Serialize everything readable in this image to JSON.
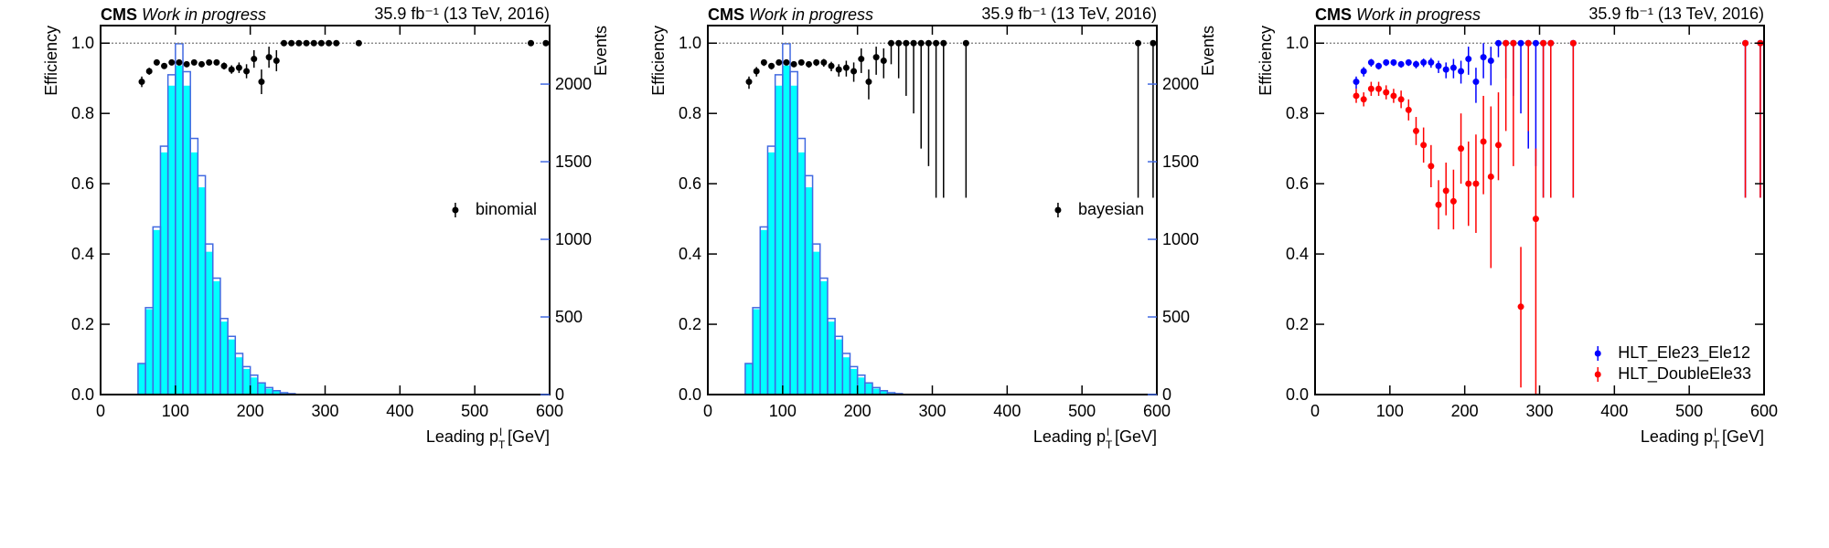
{
  "chart_data": [
    {
      "type": "errorbar",
      "experiment": "CMS",
      "status": "Work in progress",
      "lumi": "35.9 fb⁻¹ (13 TeV, 2016)",
      "xlabel": {
        "text": "Leading p",
        "sub": "T",
        "sup": "l",
        "unit": "[GeV]"
      },
      "ylabel": "Efficiency",
      "y2label": "Events",
      "y2color": "#4169e1",
      "xlim": [
        0,
        600
      ],
      "xticks": [
        0,
        100,
        200,
        300,
        400,
        500,
        600
      ],
      "ylim": [
        0,
        1.05
      ],
      "yticks": [
        {
          "value": 0,
          "label": "0.0"
        },
        0.2,
        0.4,
        0.6,
        0.8,
        {
          "value": 1,
          "label": "1.0"
        }
      ],
      "y2lim": [
        0,
        2377
      ],
      "y2ticks": [
        0,
        500,
        1000,
        1500,
        2000
      ],
      "hline": 1,
      "legend": "center right",
      "x": [
        55,
        65,
        75,
        85,
        95,
        105,
        115,
        125,
        135,
        145,
        155,
        165,
        175,
        185,
        195,
        205,
        215,
        225,
        235,
        245,
        255,
        265,
        275,
        285,
        295,
        305,
        315,
        345,
        575,
        595
      ],
      "series": [
        {
          "name": "binomial",
          "color": "#000000",
          "values": [
            0.89,
            0.92,
            0.945,
            0.935,
            0.945,
            0.945,
            0.94,
            0.945,
            0.94,
            0.945,
            0.945,
            0.935,
            0.925,
            0.93,
            0.92,
            0.955,
            0.89,
            0.96,
            0.95,
            1,
            1,
            1,
            1,
            1,
            1,
            1,
            1,
            1,
            1,
            1
          ],
          "err_low": [
            0.015,
            0.01,
            0.008,
            0.007,
            0.006,
            0.006,
            0.006,
            0.006,
            0.007,
            0.007,
            0.008,
            0.01,
            0.012,
            0.015,
            0.02,
            0.025,
            0.035,
            0.03,
            0.03,
            0,
            0,
            0,
            0,
            0,
            0,
            0,
            0,
            0,
            0,
            0
          ],
          "err_high": [
            0.015,
            0.01,
            0.008,
            0.007,
            0.006,
            0.006,
            0.006,
            0.006,
            0.007,
            0.007,
            0.008,
            0.01,
            0.012,
            0.015,
            0.02,
            0.025,
            0.035,
            0.03,
            0.03,
            0,
            0,
            0,
            0,
            0,
            0,
            0,
            0,
            0,
            0,
            0
          ]
        }
      ],
      "hist_bins": [
        50,
        60,
        70,
        80,
        90,
        100,
        110,
        120,
        130,
        140,
        150,
        160,
        170,
        180,
        190,
        200,
        210,
        220,
        230,
        240,
        250,
        260
      ],
      "hist_series": [
        {
          "color": "#00ffff",
          "fill": true,
          "values": [
            200,
            550,
            1060,
            1560,
            1990,
            2120,
            1990,
            1560,
            1335,
            920,
            730,
            470,
            355,
            240,
            165,
            110,
            70,
            38,
            22,
            8,
            4
          ]
        },
        {
          "color": "#4169e1",
          "fill": false,
          "values": [
            200,
            560,
            1080,
            1600,
            2060,
            2260,
            2080,
            1650,
            1410,
            970,
            750,
            490,
            375,
            265,
            180,
            125,
            75,
            45,
            25,
            12,
            6
          ]
        }
      ]
    },
    {
      "type": "errorbar",
      "experiment": "CMS",
      "status": "Work in progress",
      "lumi": "35.9 fb⁻¹ (13 TeV, 2016)",
      "xlabel": {
        "text": "Leading p",
        "sub": "T",
        "sup": "l",
        "unit": "[GeV]"
      },
      "ylabel": "Efficiency",
      "y2label": "Events",
      "y2color": "#4169e1",
      "xlim": [
        0,
        600
      ],
      "xticks": [
        0,
        100,
        200,
        300,
        400,
        500,
        600
      ],
      "ylim": [
        0,
        1.05
      ],
      "yticks": [
        {
          "value": 0,
          "label": "0.0"
        },
        0.2,
        0.4,
        0.6,
        0.8,
        {
          "value": 1,
          "label": "1.0"
        }
      ],
      "y2lim": [
        0,
        2377
      ],
      "y2ticks": [
        0,
        500,
        1000,
        1500,
        2000
      ],
      "hline": 1,
      "legend": "center right",
      "x": [
        55,
        65,
        75,
        85,
        95,
        105,
        115,
        125,
        135,
        145,
        155,
        165,
        175,
        185,
        195,
        205,
        215,
        225,
        235,
        245,
        255,
        265,
        275,
        285,
        295,
        305,
        315,
        345,
        575,
        595
      ],
      "series": [
        {
          "name": "bayesian",
          "color": "#000000",
          "values": [
            0.89,
            0.92,
            0.945,
            0.935,
            0.945,
            0.945,
            0.94,
            0.945,
            0.94,
            0.945,
            0.945,
            0.935,
            0.925,
            0.93,
            0.92,
            0.955,
            0.89,
            0.96,
            0.95,
            1,
            1,
            1,
            1,
            1,
            1,
            1,
            1,
            1,
            1,
            1
          ],
          "err_low": [
            0.02,
            0.015,
            0.01,
            0.01,
            0.008,
            0.008,
            0.008,
            0.008,
            0.01,
            0.01,
            0.012,
            0.015,
            0.02,
            0.025,
            0.03,
            0.04,
            0.05,
            0.05,
            0.05,
            0.06,
            0.1,
            0.15,
            0.2,
            0.3,
            0.35,
            0.44,
            0.44,
            0.44,
            0.44,
            0.44
          ],
          "err_high": [
            0.015,
            0.012,
            0.008,
            0.008,
            0.007,
            0.007,
            0.007,
            0.007,
            0.008,
            0.009,
            0.01,
            0.012,
            0.015,
            0.02,
            0.025,
            0.03,
            0.035,
            0.03,
            0.035,
            0,
            0,
            0,
            0,
            0,
            0,
            0,
            0,
            0,
            0,
            0
          ]
        }
      ],
      "hist_bins": [
        50,
        60,
        70,
        80,
        90,
        100,
        110,
        120,
        130,
        140,
        150,
        160,
        170,
        180,
        190,
        200,
        210,
        220,
        230,
        240,
        250,
        260
      ],
      "hist_series": [
        {
          "color": "#00ffff",
          "fill": true,
          "values": [
            200,
            550,
            1060,
            1560,
            1990,
            2120,
            1990,
            1560,
            1335,
            920,
            730,
            470,
            355,
            240,
            165,
            110,
            70,
            38,
            22,
            8,
            4
          ]
        },
        {
          "color": "#4169e1",
          "fill": false,
          "values": [
            200,
            560,
            1080,
            1600,
            2060,
            2260,
            2080,
            1650,
            1410,
            970,
            750,
            490,
            375,
            265,
            180,
            125,
            75,
            45,
            25,
            12,
            6
          ]
        }
      ]
    },
    {
      "type": "errorbar",
      "experiment": "CMS",
      "status": "Work in progress",
      "lumi": "35.9 fb⁻¹ (13 TeV, 2016)",
      "xlabel": {
        "text": "Leading p",
        "sub": "T",
        "sup": "l",
        "unit": "[GeV]"
      },
      "ylabel": "Efficiency",
      "xlim": [
        0,
        600
      ],
      "xticks": [
        0,
        100,
        200,
        300,
        400,
        500,
        600
      ],
      "ylim": [
        0,
        1.05
      ],
      "yticks": [
        {
          "value": 0,
          "label": "0.0"
        },
        0.2,
        0.4,
        0.6,
        0.8,
        {
          "value": 1,
          "label": "1.0"
        }
      ],
      "hline": 1,
      "legend": "lower right",
      "x": [
        55,
        65,
        75,
        85,
        95,
        105,
        115,
        125,
        135,
        145,
        155,
        165,
        175,
        185,
        195,
        205,
        215,
        225,
        235,
        245,
        255,
        265,
        275,
        285,
        295,
        305,
        315,
        345,
        575,
        595
      ],
      "series": [
        {
          "name": "HLT_Ele23_Ele12",
          "color": "#0000ff",
          "values": [
            0.89,
            0.92,
            0.945,
            0.935,
            0.945,
            0.945,
            0.94,
            0.945,
            0.94,
            0.945,
            0.945,
            0.935,
            0.925,
            0.93,
            0.92,
            0.955,
            0.89,
            0.96,
            0.95,
            1,
            1,
            1,
            1,
            1,
            1,
            1,
            1,
            1,
            1,
            1
          ],
          "err_low": [
            0.02,
            0.015,
            0.012,
            0.01,
            0.01,
            0.01,
            0.01,
            0.01,
            0.012,
            0.013,
            0.015,
            0.02,
            0.025,
            0.03,
            0.035,
            0.045,
            0.06,
            0.06,
            0.07,
            0.04,
            0.1,
            0.15,
            0.2,
            0.3,
            0.35,
            0.44,
            0.44,
            0.44,
            0.44,
            0.44
          ],
          "err_high": [
            0.015,
            0.012,
            0.01,
            0.009,
            0.009,
            0.009,
            0.009,
            0.009,
            0.01,
            0.011,
            0.013,
            0.015,
            0.02,
            0.025,
            0.03,
            0.035,
            0.04,
            0.04,
            0.04,
            0,
            0,
            0,
            0,
            0,
            0,
            0,
            0,
            0,
            0,
            0
          ]
        },
        {
          "name": "HLT_DoubleEle33",
          "color": "#ff0000",
          "values": [
            0.85,
            0.84,
            0.87,
            0.87,
            0.86,
            0.85,
            0.84,
            0.81,
            0.75,
            0.71,
            0.65,
            0.54,
            0.58,
            0.55,
            0.7,
            0.6,
            0.6,
            0.72,
            0.62,
            0.71,
            1,
            1,
            0.25,
            1,
            0.5,
            1,
            1,
            1,
            1,
            1
          ],
          "err_low": [
            0.02,
            0.02,
            0.02,
            0.02,
            0.02,
            0.02,
            0.025,
            0.03,
            0.04,
            0.05,
            0.06,
            0.07,
            0.07,
            0.08,
            0.1,
            0.12,
            0.14,
            0.15,
            0.26,
            0.1,
            0.25,
            0.35,
            0.23,
            0.25,
            0.5,
            0.44,
            0.44,
            0.44,
            0.44,
            0.44
          ],
          "err_high": [
            0.02,
            0.02,
            0.02,
            0.02,
            0.02,
            0.02,
            0.025,
            0.03,
            0.04,
            0.05,
            0.06,
            0.07,
            0.08,
            0.09,
            0.1,
            0.12,
            0.14,
            0.13,
            0.2,
            0.15,
            0,
            0,
            0.17,
            0,
            0.2,
            0,
            0,
            0,
            0,
            0
          ]
        }
      ]
    }
  ]
}
